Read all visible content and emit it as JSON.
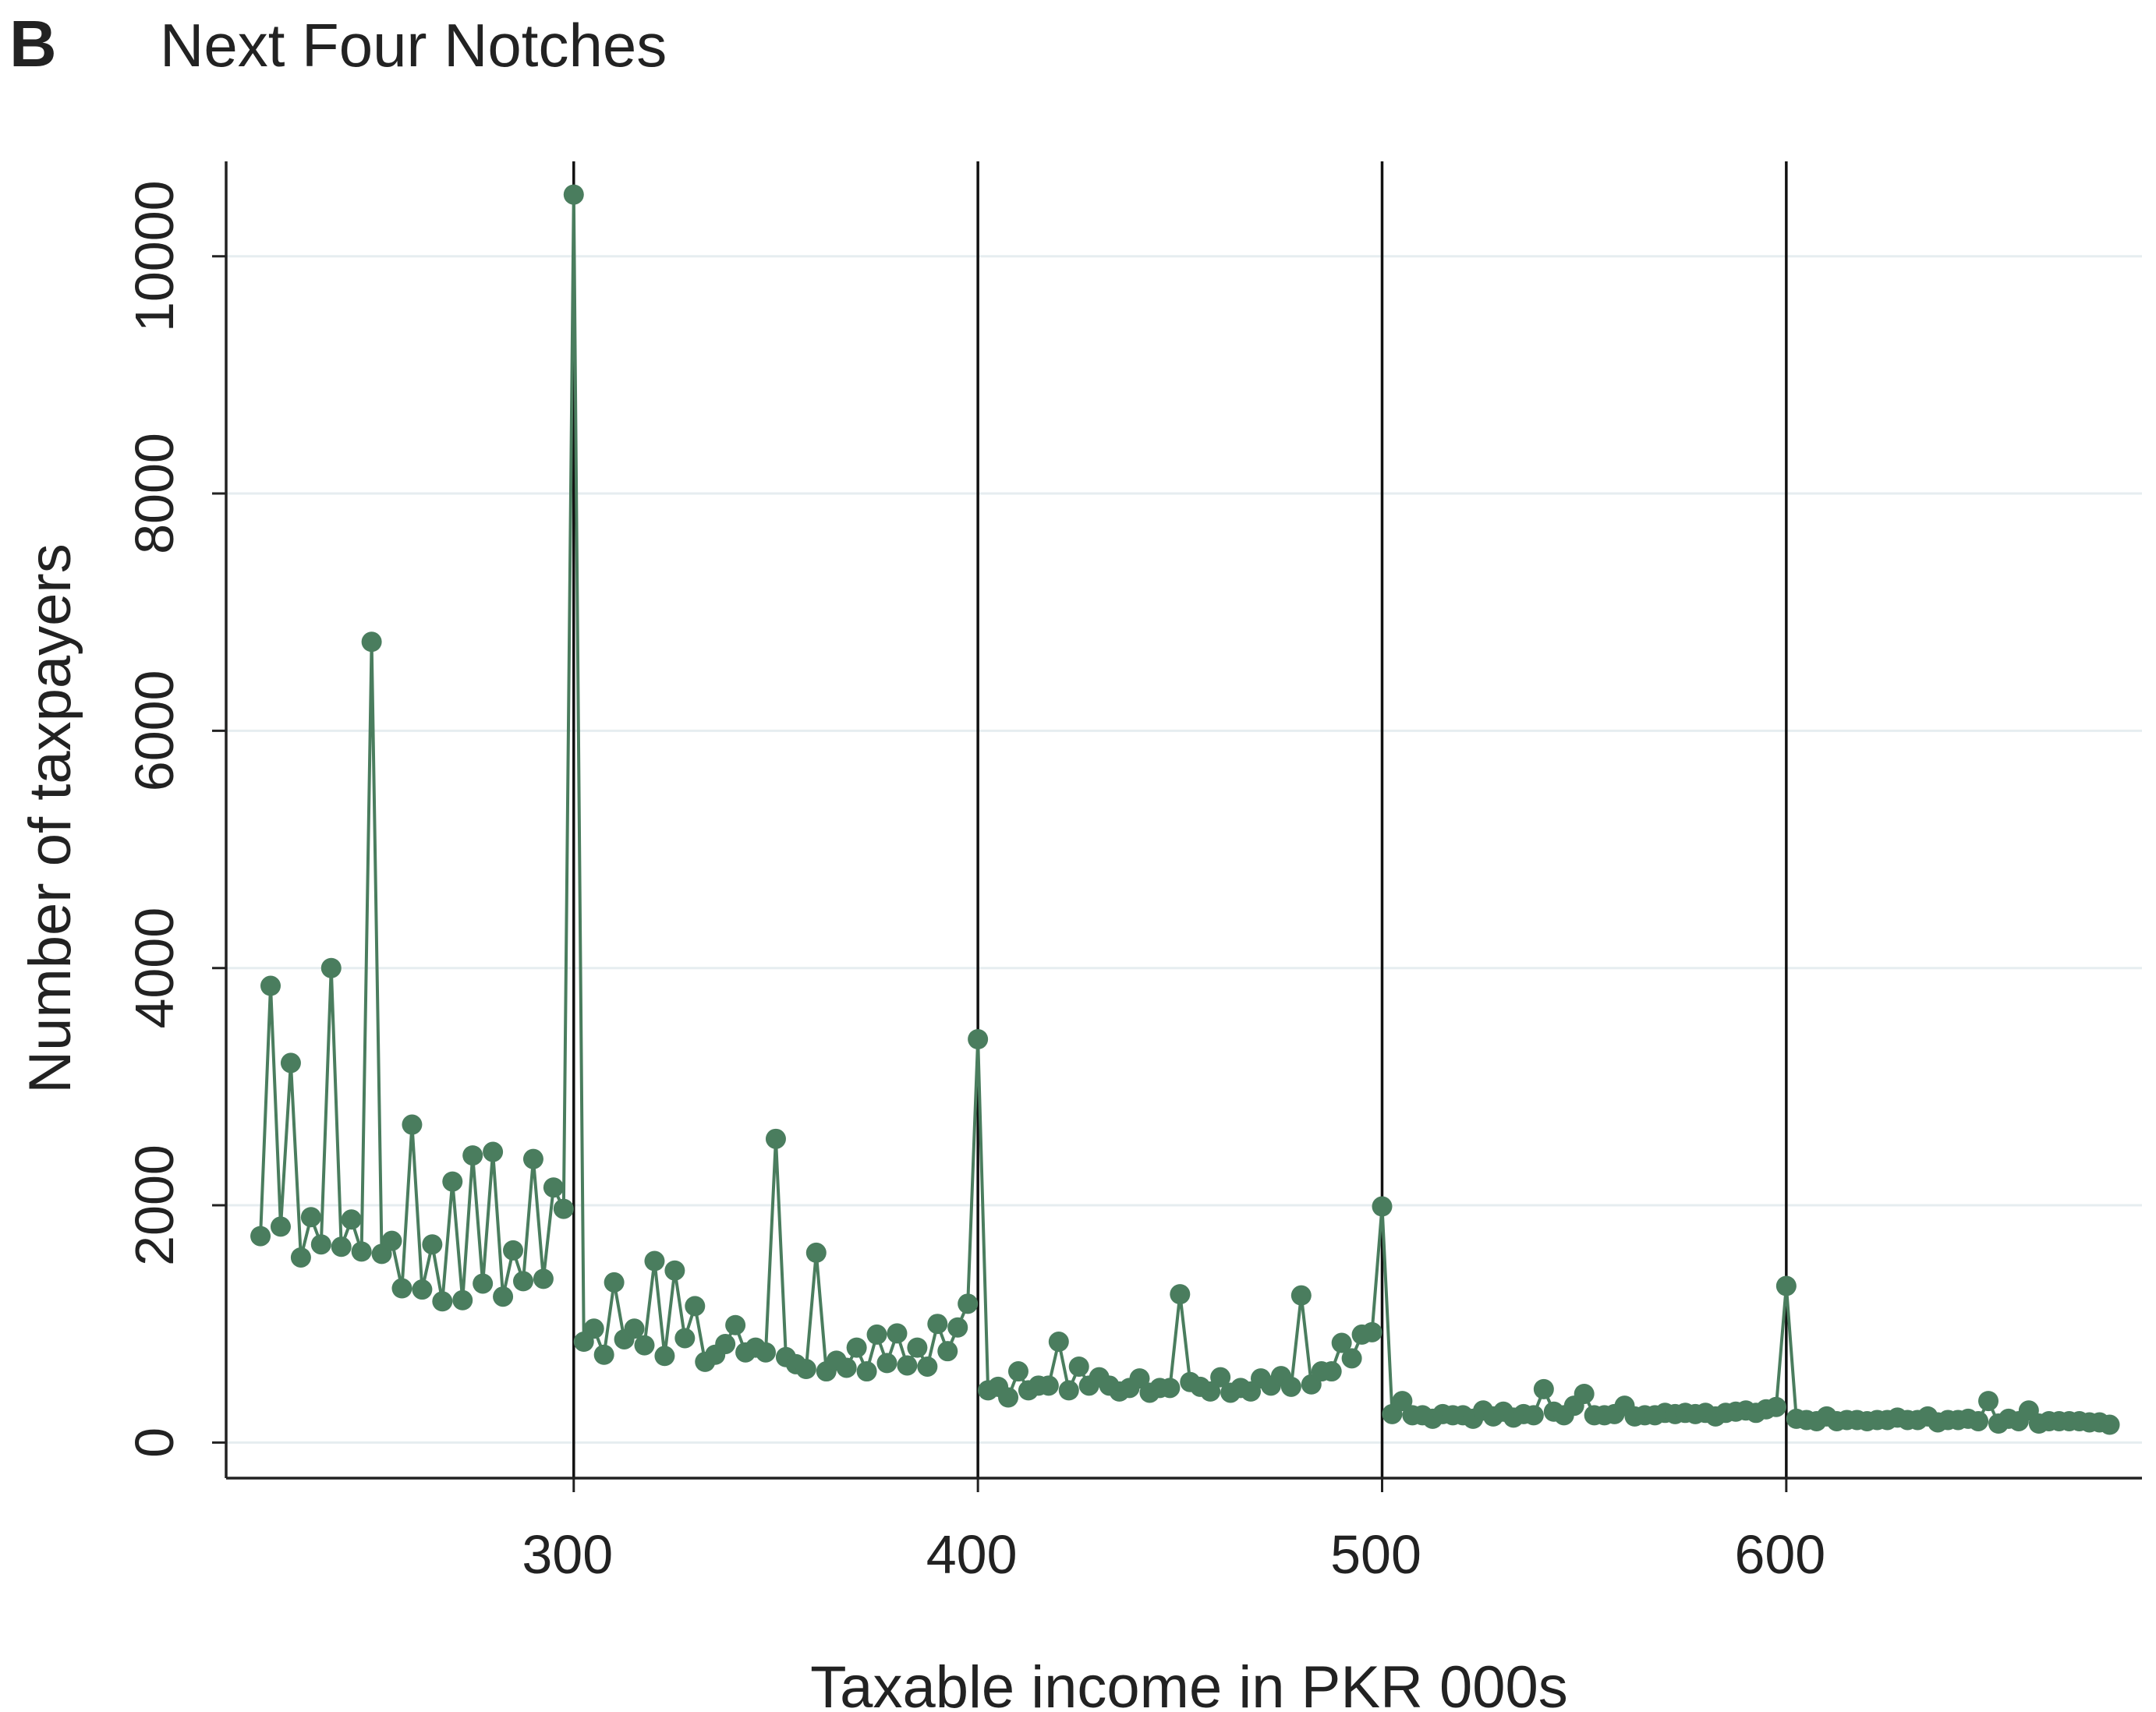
{
  "chart_data": {
    "type": "line",
    "panel_label": "B",
    "title": "Next Four Notches",
    "xlabel": "Taxable income in PKR 000s",
    "ylabel": "Number of taxpayers",
    "xlim": [
      214,
      688
    ],
    "ylim": [
      -300,
      10800
    ],
    "xticks": [
      300,
      400,
      500,
      600
    ],
    "yticks": [
      0,
      2000,
      4000,
      6000,
      8000,
      10000
    ],
    "vlines": [
      300,
      400,
      500,
      600
    ],
    "grid": true,
    "x": [
      222.5,
      225,
      227.5,
      230,
      232.5,
      235,
      237.5,
      240,
      242.5,
      245,
      247.5,
      250,
      252.5,
      255,
      257.5,
      260,
      262.5,
      265,
      267.5,
      270,
      272.5,
      275,
      277.5,
      280,
      282.5,
      285,
      287.5,
      290,
      292.5,
      295,
      297.5,
      300,
      302.5,
      305,
      307.5,
      310,
      312.5,
      315,
      317.5,
      320,
      322.5,
      325,
      327.5,
      330,
      332.5,
      335,
      337.5,
      340,
      342.5,
      345,
      347.5,
      350,
      352.5,
      355,
      357.5,
      360,
      362.5,
      365,
      367.5,
      370,
      372.5,
      375,
      377.5,
      380,
      382.5,
      385,
      387.5,
      390,
      392.5,
      395,
      397.5,
      400,
      402.5,
      405,
      407.5,
      410,
      412.5,
      415,
      417.5,
      420,
      422.5,
      425,
      427.5,
      430,
      432.5,
      435,
      437.5,
      440,
      442.5,
      445,
      447.5,
      450,
      452.5,
      455,
      457.5,
      460,
      462.5,
      465,
      467.5,
      470,
      472.5,
      475,
      477.5,
      480,
      482.5,
      485,
      487.5,
      490,
      492.5,
      495,
      497.5,
      500,
      502.5,
      505,
      507.5,
      510,
      512.5,
      515,
      517.5,
      520,
      522.5,
      525,
      527.5,
      530,
      532.5,
      535,
      537.5,
      540,
      542.5,
      545,
      547.5,
      550,
      552.5,
      555,
      557.5,
      560,
      562.5,
      565,
      567.5,
      570,
      572.5,
      575,
      577.5,
      580,
      582.5,
      585,
      587.5,
      590,
      592.5,
      595,
      597.5,
      600,
      602.5,
      605,
      607.5,
      610,
      612.5,
      615,
      617.5,
      620,
      622.5,
      625,
      627.5,
      630,
      632.5,
      635,
      637.5,
      640,
      642.5,
      645,
      647.5,
      650,
      652.5,
      655,
      657.5,
      660,
      662.5,
      665,
      667.5,
      670,
      672.5,
      675,
      677.5,
      680
    ],
    "series": [
      {
        "name": "Number of taxpayers",
        "color": "#4a7d5e",
        "values": [
          1740,
          3850,
          1820,
          3200,
          1560,
          1900,
          1670,
          4000,
          1650,
          1880,
          1610,
          6750,
          1590,
          1700,
          1300,
          2680,
          1290,
          1670,
          1190,
          2200,
          1200,
          2420,
          1340,
          2450,
          1230,
          1620,
          1360,
          2390,
          1380,
          2150,
          1970,
          10520,
          850,
          960,
          740,
          1350,
          870,
          960,
          820,
          1530,
          730,
          1450,
          880,
          1150,
          680,
          740,
          830,
          990,
          760,
          800,
          760,
          2560,
          720,
          660,
          620,
          1600,
          600,
          690,
          630,
          800,
          600,
          910,
          670,
          920,
          650,
          800,
          640,
          1000,
          770,
          970,
          1170,
          3400,
          440,
          470,
          380,
          600,
          440,
          480,
          480,
          850,
          440,
          640,
          480,
          550,
          480,
          430,
          460,
          540,
          420,
          460,
          460,
          1250,
          510,
          470,
          430,
          550,
          420,
          460,
          430,
          540,
          480,
          560,
          470,
          1240,
          490,
          600,
          600,
          840,
          710,
          910,
          930,
          1990,
          240,
          350,
          230,
          230,
          200,
          240,
          230,
          230,
          200,
          270,
          220,
          260,
          210,
          240,
          230,
          450,
          260,
          230,
          310,
          410,
          230,
          230,
          240,
          310,
          220,
          230,
          230,
          250,
          240,
          250,
          240,
          250,
          220,
          250,
          260,
          270,
          250,
          280,
          300,
          1320,
          200,
          190,
          180,
          220,
          180,
          190,
          190,
          180,
          190,
          190,
          210,
          190,
          190,
          220,
          170,
          190,
          190,
          200,
          180,
          350,
          160,
          200,
          180,
          270,
          160,
          180,
          180,
          180,
          180,
          170,
          170,
          150
        ]
      }
    ]
  }
}
